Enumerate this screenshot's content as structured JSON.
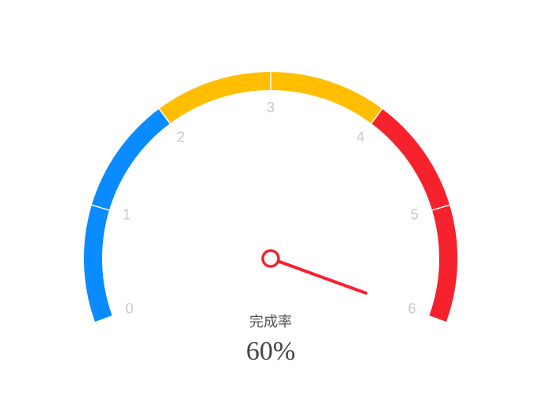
{
  "chart_data": {
    "type": "gauge",
    "title": "完成率",
    "detail": "60%",
    "value": 6,
    "ylim": [
      0,
      6
    ],
    "yticks": [
      0,
      1,
      2,
      3,
      4,
      5,
      6
    ],
    "bands": [
      {
        "to": 2,
        "color": "#0a8bff"
      },
      {
        "to": 4,
        "color": "#ffbe00"
      },
      {
        "to": 6,
        "color": "#f5222d"
      }
    ],
    "needle_color": "#f5222d"
  }
}
